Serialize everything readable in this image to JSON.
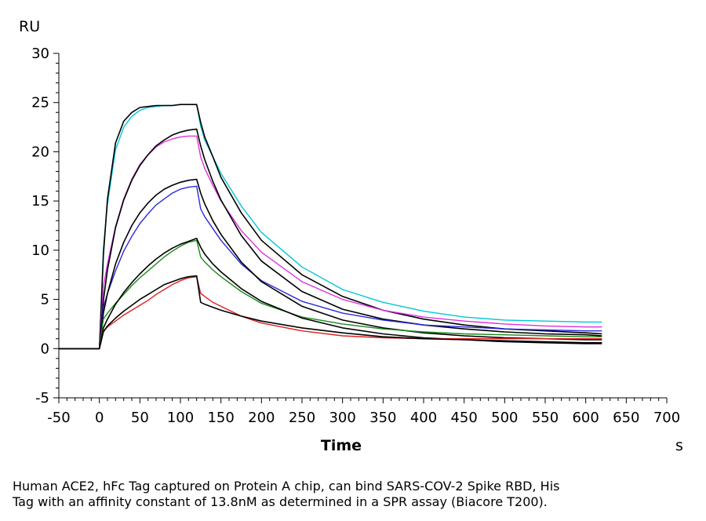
{
  "chart_data": {
    "type": "line",
    "xlabel": "Time",
    "x_unit": "s",
    "ylabel": "RU",
    "xlim": [
      -50,
      700
    ],
    "ylim": [
      -5,
      30
    ],
    "xticks": [
      -50,
      0,
      50,
      100,
      150,
      200,
      250,
      300,
      350,
      400,
      450,
      500,
      550,
      600,
      650,
      700
    ],
    "yticks": [
      -5,
      0,
      5,
      10,
      15,
      20,
      25,
      30
    ],
    "grid": false,
    "series": [
      {
        "color": "#00c8d8",
        "x": [
          -50,
          0,
          5,
          10,
          20,
          30,
          40,
          50,
          60,
          70,
          80,
          90,
          100,
          110,
          120,
          125,
          130,
          140,
          150,
          175,
          200,
          250,
          300,
          350,
          400,
          450,
          500,
          550,
          600,
          620
        ],
        "y": [
          0,
          0,
          10.2,
          14.7,
          20.2,
          22.5,
          23.6,
          24.2,
          24.5,
          24.6,
          24.7,
          24.7,
          24.8,
          24.8,
          24.8,
          22.6,
          21.2,
          19.5,
          17.8,
          14.5,
          11.8,
          8.3,
          6.0,
          4.7,
          3.8,
          3.2,
          2.9,
          2.8,
          2.7,
          2.7
        ]
      },
      {
        "color": "#000000",
        "x": [
          -50,
          0,
          5,
          10,
          20,
          30,
          40,
          50,
          60,
          70,
          80,
          90,
          100,
          110,
          120,
          125,
          130,
          140,
          150,
          175,
          200,
          250,
          300,
          350,
          400,
          450,
          500,
          550,
          600,
          620
        ],
        "y": [
          0,
          0,
          9.5,
          15.2,
          20.9,
          23.1,
          24.0,
          24.5,
          24.6,
          24.7,
          24.7,
          24.7,
          24.8,
          24.8,
          24.8,
          23.0,
          21.5,
          19.5,
          17.4,
          13.8,
          11.0,
          7.5,
          5.3,
          3.9,
          3.0,
          2.4,
          2.0,
          1.8,
          1.6,
          1.5
        ]
      },
      {
        "color": "#e030e0",
        "x": [
          -50,
          0,
          5,
          10,
          20,
          30,
          40,
          50,
          60,
          70,
          80,
          90,
          100,
          110,
          120,
          125,
          130,
          140,
          150,
          175,
          200,
          250,
          300,
          350,
          400,
          450,
          500,
          550,
          600,
          620
        ],
        "y": [
          0,
          0,
          6.3,
          8.6,
          12.4,
          15.2,
          17.2,
          18.7,
          19.7,
          20.5,
          21.0,
          21.3,
          21.5,
          21.6,
          21.6,
          19.5,
          18.3,
          16.6,
          15.0,
          12.0,
          9.8,
          6.8,
          5.0,
          3.9,
          3.2,
          2.8,
          2.5,
          2.3,
          2.2,
          2.2
        ]
      },
      {
        "color": "#000000",
        "x": [
          -50,
          0,
          5,
          10,
          20,
          30,
          40,
          50,
          60,
          70,
          80,
          90,
          100,
          110,
          120,
          125,
          130,
          140,
          150,
          175,
          200,
          250,
          300,
          350,
          400,
          450,
          500,
          550,
          600,
          620
        ],
        "y": [
          0,
          0,
          4.9,
          8.0,
          12.3,
          15.1,
          17.1,
          18.6,
          19.7,
          20.6,
          21.2,
          21.7,
          22.0,
          22.2,
          22.3,
          20.6,
          19.2,
          17.0,
          15.1,
          11.5,
          8.9,
          5.8,
          4.0,
          3.0,
          2.4,
          2.0,
          1.7,
          1.5,
          1.4,
          1.3
        ]
      },
      {
        "color": "#2a2ae0",
        "x": [
          -50,
          0,
          5,
          10,
          20,
          30,
          40,
          50,
          60,
          70,
          80,
          90,
          100,
          110,
          120,
          125,
          130,
          140,
          150,
          175,
          200,
          250,
          300,
          350,
          400,
          450,
          500,
          550,
          600,
          620
        ],
        "y": [
          0,
          0,
          4.2,
          5.6,
          7.9,
          9.9,
          11.4,
          12.7,
          13.7,
          14.6,
          15.2,
          15.8,
          16.2,
          16.4,
          16.5,
          14.2,
          13.4,
          12.2,
          11.0,
          8.6,
          6.9,
          4.8,
          3.6,
          2.9,
          2.4,
          2.2,
          2.0,
          1.9,
          1.8,
          1.8
        ]
      },
      {
        "color": "#000000",
        "x": [
          -50,
          0,
          5,
          10,
          20,
          30,
          40,
          50,
          60,
          70,
          80,
          90,
          100,
          110,
          120,
          125,
          130,
          140,
          150,
          175,
          200,
          250,
          300,
          350,
          400,
          450,
          500,
          550,
          600,
          620
        ],
        "y": [
          0,
          0,
          3.6,
          5.6,
          8.6,
          10.8,
          12.5,
          13.8,
          14.8,
          15.6,
          16.2,
          16.6,
          16.9,
          17.1,
          17.2,
          15.8,
          14.7,
          13.0,
          11.6,
          8.8,
          6.8,
          4.3,
          2.9,
          2.1,
          1.6,
          1.3,
          1.1,
          1.0,
          0.9,
          0.9
        ]
      },
      {
        "color": "#1a8a1a",
        "x": [
          -50,
          0,
          5,
          10,
          20,
          30,
          40,
          50,
          60,
          70,
          80,
          90,
          100,
          110,
          120,
          125,
          130,
          140,
          150,
          175,
          200,
          250,
          300,
          350,
          400,
          450,
          500,
          550,
          600,
          620
        ],
        "y": [
          0,
          0,
          3.0,
          3.6,
          4.6,
          5.5,
          6.4,
          7.2,
          7.9,
          8.6,
          9.3,
          9.9,
          10.4,
          10.8,
          11.0,
          9.3,
          8.8,
          8.0,
          7.3,
          5.8,
          4.6,
          3.2,
          2.5,
          2.0,
          1.7,
          1.5,
          1.4,
          1.3,
          1.2,
          1.2
        ]
      },
      {
        "color": "#000000",
        "x": [
          -50,
          0,
          5,
          10,
          20,
          30,
          40,
          50,
          60,
          70,
          80,
          90,
          100,
          110,
          120,
          125,
          130,
          140,
          150,
          175,
          200,
          250,
          300,
          350,
          400,
          450,
          500,
          550,
          600,
          620
        ],
        "y": [
          0,
          0,
          2.1,
          3.0,
          4.5,
          5.7,
          6.7,
          7.6,
          8.4,
          9.1,
          9.7,
          10.2,
          10.6,
          10.9,
          11.2,
          10.3,
          9.6,
          8.6,
          7.8,
          6.1,
          4.8,
          3.1,
          2.1,
          1.5,
          1.1,
          0.9,
          0.7,
          0.6,
          0.5,
          0.5
        ]
      },
      {
        "color": "#e02020",
        "x": [
          -50,
          0,
          5,
          10,
          20,
          30,
          40,
          50,
          60,
          70,
          80,
          90,
          100,
          110,
          120,
          125,
          130,
          140,
          150,
          175,
          200,
          250,
          300,
          350,
          400,
          450,
          500,
          550,
          600,
          620
        ],
        "y": [
          0,
          0,
          1.8,
          2.2,
          2.8,
          3.4,
          3.9,
          4.4,
          4.9,
          5.5,
          6.0,
          6.5,
          6.9,
          7.2,
          7.3,
          5.6,
          5.3,
          4.7,
          4.3,
          3.3,
          2.6,
          1.8,
          1.3,
          1.1,
          1.0,
          1.0,
          1.0,
          1.0,
          1.0,
          1.0
        ]
      },
      {
        "color": "#000000",
        "x": [
          -50,
          0,
          5,
          10,
          20,
          30,
          40,
          50,
          60,
          70,
          80,
          90,
          100,
          110,
          120,
          125,
          130,
          140,
          150,
          175,
          200,
          250,
          300,
          350,
          400,
          450,
          500,
          550,
          600,
          620
        ],
        "y": [
          0,
          0,
          1.7,
          2.3,
          3.1,
          3.8,
          4.4,
          5.0,
          5.5,
          6.0,
          6.5,
          6.8,
          7.1,
          7.3,
          7.4,
          4.7,
          4.5,
          4.2,
          3.9,
          3.3,
          2.8,
          2.1,
          1.6,
          1.2,
          1.0,
          0.9,
          0.8,
          0.7,
          0.6,
          0.6
        ]
      }
    ]
  },
  "caption": {
    "line1": "Human ACE2, hFc Tag captured on Protein A chip, can bind SARS-COV-2 Spike RBD, His",
    "line2": "Tag with an affinity constant of 13.8nM as determined in a SPR assay (Biacore T200)."
  }
}
